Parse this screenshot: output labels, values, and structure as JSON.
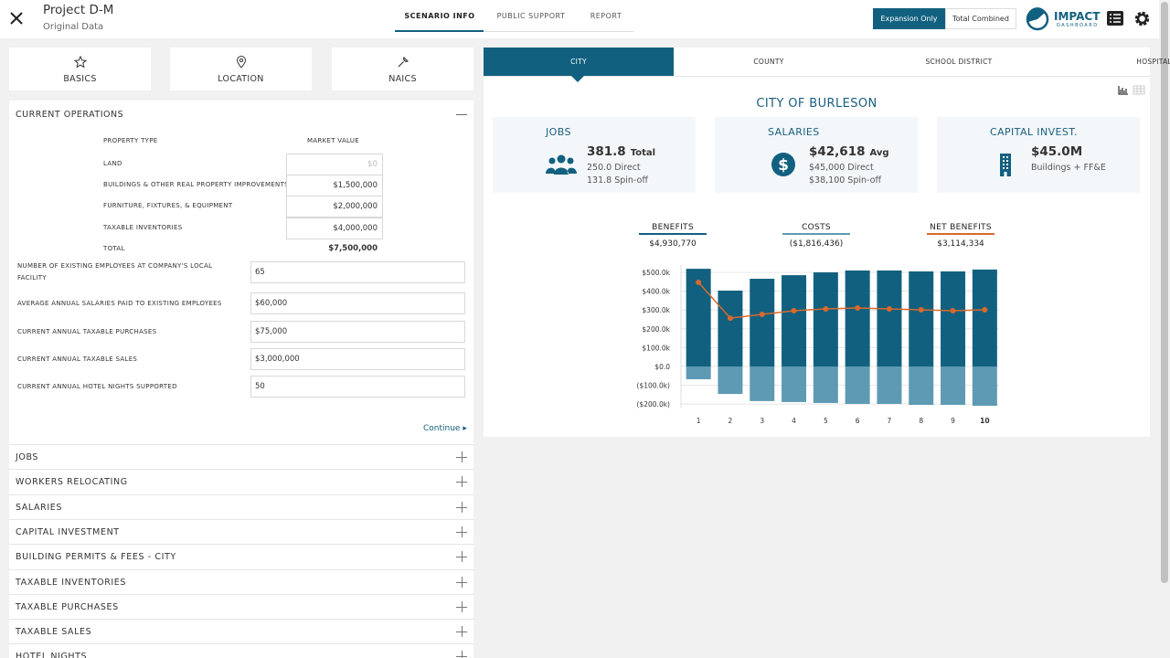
{
  "header": {
    "title": "Project D-M",
    "subtitle": "Original Data",
    "tabs": [
      "SCENARIO INFO",
      "PUBLIC SUPPORT",
      "REPORT"
    ],
    "toggle": [
      "Expansion Only",
      "Total Combined"
    ],
    "logo": "IMPACT",
    "logo_sub": "DASHBOARD"
  },
  "left": {
    "nav": [
      "BASICS",
      "LOCATION",
      "NAICS"
    ],
    "section": "CURRENT OPERATIONS",
    "property_header": [
      "PROPERTY TYPE",
      "MARKET VALUE"
    ],
    "property_rows": [
      [
        "LAND",
        "$0"
      ],
      [
        "BUILDINGS & OTHER REAL PROPERTY IMPROVEMENTS",
        "$1,500,000"
      ],
      [
        "FURNITURE, FIXTURES, & EQUIPMENT",
        "$2,000,000"
      ],
      [
        "TAXABLE INVENTORIES",
        "$4,000,000"
      ]
    ],
    "total": [
      "TOTAL",
      "$7,500,000"
    ],
    "fields": [
      [
        "NUMBER OF EXISTING EMPLOYEES AT COMPANY'S LOCAL FACILITY",
        "65"
      ],
      [
        "AVERAGE ANNUAL SALARIES PAID TO EXISTING EMPLOYEES",
        "$60,000"
      ],
      [
        "CURRENT ANNUAL TAXABLE PURCHASES",
        "$75,000"
      ],
      [
        "CURRENT ANNUAL TAXABLE SALES",
        "$3,000,000"
      ],
      [
        "CURRENT ANNUAL HOTEL NIGHTS SUPPORTED",
        "50"
      ]
    ],
    "continue": "Continue",
    "sections": [
      "JOBS",
      "WORKERS RELOCATING",
      "SALARIES",
      "CAPITAL INVESTMENT",
      "BUILDING PERMITS & FEES - CITY",
      "TAXABLE INVENTORIES",
      "TAXABLE PURCHASES",
      "TAXABLE SALES",
      "HOTEL NIGHTS"
    ]
  },
  "right": {
    "tabs": [
      "CITY",
      "COUNTY",
      "SCHOOL DISTRICT",
      "HOSPITAL"
    ],
    "entity": "CITY OF BURLESON",
    "cards": [
      {
        "title": "JOBS",
        "main": "381.8",
        "unit": "Total",
        "lines": [
          "250.0 Direct",
          "131.8 Spin-off"
        ]
      },
      {
        "title": "SALARIES",
        "main": "$42,618",
        "unit": "Avg",
        "lines": [
          "$45,000 Direct",
          "$38,100 Spin-off"
        ]
      },
      {
        "title": "CAPITAL INVEST.",
        "main": "$45.0M",
        "lines": [
          "Buildings + FF&E"
        ]
      }
    ]
  },
  "chart_data": {
    "type": "bar",
    "categories": [
      "1",
      "2",
      "3",
      "4",
      "5",
      "6",
      "7",
      "8",
      "9",
      "10"
    ],
    "series": [
      {
        "name": "BENEFITS",
        "total": "$4,930,770",
        "color": "#12607f",
        "values": [
          519000,
          403000,
          466000,
          485000,
          500000,
          510000,
          510000,
          505000,
          505000,
          515000
        ]
      },
      {
        "name": "COSTS",
        "total": "($1,816,436)",
        "color": "#5e9ab3",
        "values": [
          -68000,
          -146000,
          -184000,
          -189000,
          -194000,
          -199000,
          -199000,
          -204000,
          -204000,
          -209000
        ]
      },
      {
        "name": "NET BENEFITS",
        "total": "$3,114,334",
        "color": "#d9692c",
        "type": "line",
        "values": [
          447000,
          257000,
          277000,
          296000,
          306000,
          311000,
          306000,
          301000,
          296000,
          301000
        ]
      }
    ],
    "ylim": [
      -220000,
      540000
    ],
    "yticks": [
      {
        "value": -200000,
        "label": "($200.0k)"
      },
      {
        "value": -100000,
        "label": "($100.0k)"
      },
      {
        "value": 0,
        "label": "$0.0"
      },
      {
        "value": 100000,
        "label": "$100.0k"
      },
      {
        "value": 200000,
        "label": "$200.0k"
      },
      {
        "value": 300000,
        "label": "$300.0k"
      },
      {
        "value": 400000,
        "label": "$400.0k"
      },
      {
        "value": 500000,
        "label": "$500.0k"
      }
    ],
    "grid": true
  }
}
